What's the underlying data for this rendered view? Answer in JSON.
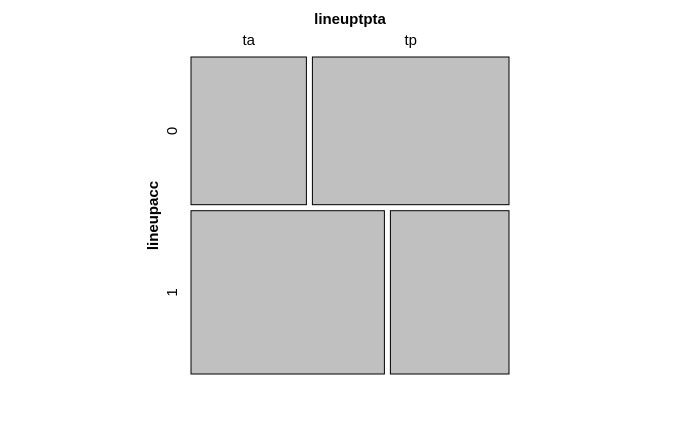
{
  "chart_data": {
    "type": "mosaic",
    "xlabel": "lineuptpta",
    "ylabel": "lineupacc",
    "row_categories": [
      "0",
      "1"
    ],
    "column_categories": [
      "ta",
      "tp"
    ],
    "row_proportions": [
      0.475,
      0.525
    ],
    "cells": [
      {
        "row": "0",
        "column": "ta",
        "proportion_within_row": 0.37
      },
      {
        "row": "0",
        "column": "tp",
        "proportion_within_row": 0.63
      },
      {
        "row": "1",
        "column": "ta",
        "proportion_within_row": 0.62
      },
      {
        "row": "1",
        "column": "tp",
        "proportion_within_row": 0.38
      }
    ],
    "colors": {
      "tile_fill": "#c0c0c0",
      "tile_border": "#000000"
    }
  }
}
